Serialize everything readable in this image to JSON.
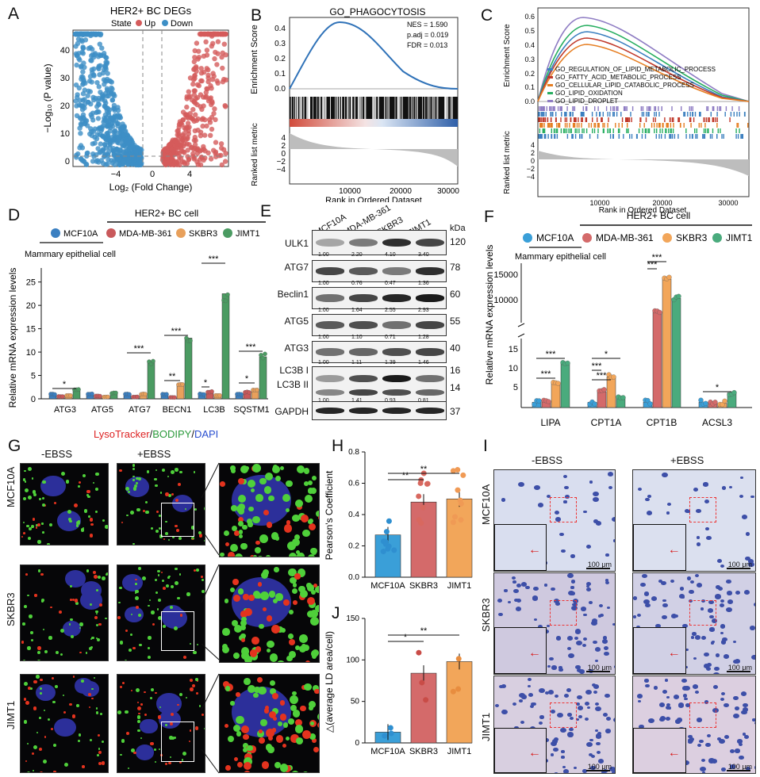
{
  "panels": {
    "A": {
      "letter": "A",
      "title": "HER2+ BC DEGs",
      "legend_title": "State",
      "legend_up": "Up",
      "legend_down": "Down",
      "xlabel": "Log₂ (Fold Change)",
      "ylabel": "−Log₁₀ (P value)",
      "xticks": [
        "−4",
        "0",
        "4"
      ],
      "yticks": [
        "0",
        "10",
        "20",
        "30",
        "40"
      ],
      "colors": {
        "up": "#d45b5b",
        "down": "#3d8fc6"
      }
    },
    "B": {
      "letter": "B",
      "title": "GO_PHAGOCYTOSIS",
      "stats": [
        "NES = 1.590",
        "p.adj = 0.019",
        "FDR = 0.013"
      ],
      "ylabel_top": "Enrichment Score",
      "ylabel_bottom": "Ranked list metric",
      "xlabel": "Rank in Ordered Dataset",
      "yticks_top": [
        "0.4",
        "0.3",
        "0.2",
        "0.1",
        "0.0"
      ],
      "yticks_bottom": [
        "4",
        "2",
        "0",
        "−2",
        "−4"
      ],
      "xticks": [
        "10000",
        "20000",
        "30000"
      ]
    },
    "C": {
      "letter": "C",
      "ylabel_top": "Enrichment Score",
      "ylabel_bottom": "Ranked list metric",
      "xlabel": "Rank in Ordered Dataset",
      "yticks_top": [
        "0.6",
        "0.5",
        "0.4",
        "0.3",
        "0.2",
        "0.1",
        "0.0"
      ],
      "yticks_bottom": [
        "4",
        "2",
        "0",
        "−2",
        "−4"
      ],
      "xticks": [
        "10000",
        "20000",
        "30000"
      ],
      "legend": [
        {
          "name": "GO_REGULATION_OF_LIPID_METABOLIC_PROCESS",
          "color": "#3b7fbf"
        },
        {
          "name": "GO_FATTY_ACID_METABOLIC_PROCESS",
          "color": "#c0392b"
        },
        {
          "name": "GO_CELLULAR_LIPID_CATABOLIC_PROCESS",
          "color": "#e67e22"
        },
        {
          "name": "GO_LIPID_OXIDATION",
          "color": "#27ae60"
        },
        {
          "name": "GO_LIPID_DROPLET",
          "color": "#8e7cc3"
        }
      ]
    },
    "D": {
      "letter": "D",
      "group_label": "HER2+ BC cell",
      "epithelial_label": "Mammary epithelial cell",
      "legend": [
        {
          "name": "MCF10A",
          "color": "#3a7fc1"
        },
        {
          "name": "MDA-MB-361",
          "color": "#c9595b"
        },
        {
          "name": "SKBR3",
          "color": "#e8a05b"
        },
        {
          "name": "JIMT1",
          "color": "#4b9b62"
        }
      ],
      "ylabel": "Relative mRNA expression levels",
      "yticks": [
        "0",
        "5",
        "10",
        "15",
        "20",
        "25"
      ],
      "sig": [
        "*",
        "***",
        "**",
        "***",
        "*",
        "***",
        "*",
        "***"
      ]
    },
    "E": {
      "letter": "E",
      "lanes": [
        "MCF10A",
        "MDA-MB-361",
        "SKBR3",
        "JIMT1"
      ],
      "kda_label": "kDa",
      "rows": [
        {
          "name": "ULK1",
          "kda": "120",
          "q": [
            "1.00",
            "2.20",
            "4.10",
            "3.40"
          ]
        },
        {
          "name": "ATG7",
          "kda": "78",
          "q": [
            "1.00",
            "0.76",
            "0.47",
            "1.36"
          ]
        },
        {
          "name": "Beclin1",
          "kda": "60",
          "q": [
            "1.00",
            "1.64",
            "2.55",
            "2.93"
          ]
        },
        {
          "name": "ATG5",
          "kda": "55",
          "q": [
            "1.00",
            "1.10",
            "0.71",
            "1.28"
          ]
        },
        {
          "name": "ATG3",
          "kda": "40",
          "q": [
            "1.00",
            "1.11",
            "1.39",
            "1.46"
          ]
        },
        {
          "name": "LC3B I",
          "kda": "16",
          "q": []
        },
        {
          "name": "LC3B II",
          "kda": "14",
          "q": [
            "1.00",
            "1.41",
            "0.93",
            "0.81"
          ]
        },
        {
          "name": "GAPDH",
          "kda": "37",
          "q": []
        }
      ]
    },
    "F": {
      "letter": "F",
      "group_label": "HER2+ BC cell",
      "epithelial_label": "Mammary epithelial cell",
      "legend": [
        {
          "name": "MCF10A",
          "color": "#3a9fd8"
        },
        {
          "name": "MDA-MB-361",
          "color": "#d46a6a"
        },
        {
          "name": "SKBR3",
          "color": "#f2a65a"
        },
        {
          "name": "JIMT1",
          "color": "#4aab7d"
        }
      ],
      "ylabel": "Relative mRNA expression levels",
      "yticks_upper": [
        "15000",
        "10000"
      ],
      "yticks_lower": [
        "15",
        "10",
        "5"
      ],
      "sig": [
        "***",
        "***",
        "*",
        "***",
        "***",
        "***",
        "***",
        "*"
      ]
    },
    "G": {
      "letter": "G",
      "stain_red": "LysoTracker",
      "stain_green": "BODIPY",
      "stain_blue": "DAPI",
      "sep": "/",
      "col_minus": "-EBSS",
      "col_plus": "+EBSS",
      "rows": [
        "MCF10A",
        "SKBR3",
        "JIMT1"
      ]
    },
    "H": {
      "letter": "H",
      "ylabel": "Pearson's Coefficient",
      "yticks": [
        "0.0",
        "0.2",
        "0.4",
        "0.6",
        "0.8"
      ],
      "sig": [
        "**",
        "**"
      ]
    },
    "J": {
      "letter": "J",
      "ylabel": "△(average LD area/cell)",
      "yticks": [
        "0",
        "50",
        "100",
        "150"
      ],
      "sig": [
        "*",
        "**"
      ]
    },
    "I": {
      "letter": "I",
      "col_minus": "-EBSS",
      "col_plus": "+EBSS",
      "rows": [
        "MCF10A",
        "SKBR3",
        "JIMT1"
      ],
      "scale": "100 μm"
    }
  },
  "chart_data": [
    {
      "type": "bar",
      "panel": "D",
      "categories": [
        "ATG3",
        "ATG5",
        "ATG7",
        "BECN1",
        "LC3B",
        "SQSTM1"
      ],
      "series": [
        {
          "name": "MCF10A",
          "values": [
            1.0,
            1.0,
            1.0,
            1.0,
            1.0,
            1.0
          ]
        },
        {
          "name": "MDA-MB-361",
          "values": [
            0.5,
            0.6,
            0.4,
            0.3,
            1.5,
            1.4
          ]
        },
        {
          "name": "SKBR3",
          "values": [
            0.7,
            0.4,
            1.0,
            3.0,
            0.7,
            1.9
          ]
        },
        {
          "name": "JIMT1",
          "values": [
            2.0,
            1.2,
            8.0,
            13.0,
            22.5,
            9.0
          ]
        }
      ],
      "ylabel": "Relative mRNA expression levels",
      "ylim": [
        0,
        28
      ]
    },
    {
      "type": "bar",
      "panel": "F",
      "categories": [
        "LIPA",
        "CPT1A",
        "CPT1B",
        "ACSL3"
      ],
      "series": [
        {
          "name": "MCF10A",
          "values": [
            1.0,
            1.0,
            1.0,
            1.0
          ]
        },
        {
          "name": "MDA-MB-361",
          "values": [
            1.2,
            3.0,
            7100,
            1.1
          ]
        },
        {
          "name": "SKBR3",
          "values": [
            4.6,
            5.8,
            13800,
            0.8
          ]
        },
        {
          "name": "JIMT1",
          "values": [
            8.4,
            2.0,
            9900,
            2.8
          ]
        }
      ],
      "ylabel": "Relative mRNA expression levels"
    },
    {
      "type": "bar",
      "panel": "H",
      "categories": [
        "MCF10A",
        "SKBR3",
        "JIMT1"
      ],
      "values": [
        0.27,
        0.48,
        0.5
      ],
      "ylabel": "Pearson's Coefficient",
      "ylim": [
        0,
        0.8
      ]
    },
    {
      "type": "bar",
      "panel": "J",
      "categories": [
        "MCF10A",
        "SKBR3",
        "JIMT1"
      ],
      "values": [
        13,
        84,
        98
      ],
      "ylabel": "△(average LD area/cell)",
      "ylim": [
        0,
        150
      ]
    }
  ]
}
